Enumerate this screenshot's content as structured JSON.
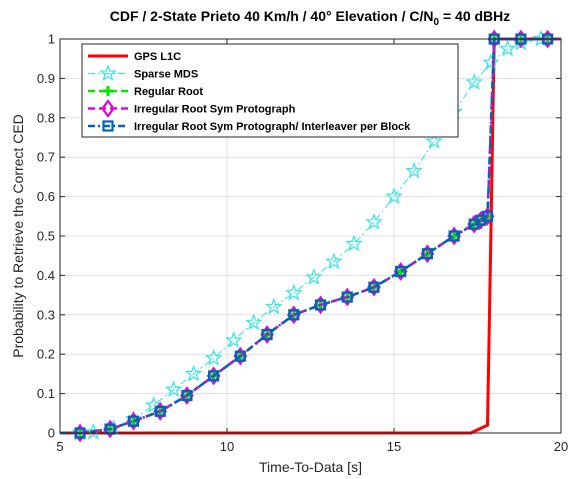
{
  "chart_data": {
    "type": "line",
    "title_main": "CDF / 2-State Prieto 40 Km/h / 40° Elevation / C/N",
    "title_sub": "0",
    "title_end": " = 40 dBHz",
    "xlabel": "Time-To-Data [s]",
    "ylabel": "Probability to Retrieve the Correct CED",
    "xlim": [
      5,
      20
    ],
    "ylim": [
      0,
      1
    ],
    "xticks": [
      "5",
      "10",
      "15",
      "20"
    ],
    "yticks": [
      "0",
      "0.1",
      "0.2",
      "0.3",
      "0.4",
      "0.5",
      "0.6",
      "0.7",
      "0.8",
      "0.9",
      "1"
    ],
    "grid": true,
    "legend_position": "top-left",
    "series": [
      {
        "name": "GPS L1C",
        "color": "#ff0000",
        "marker": "none",
        "dash": "solid",
        "x": [
          5,
          17.3,
          17.8,
          17.9,
          18.0,
          20
        ],
        "y": [
          0,
          0,
          0.02,
          0.5,
          1.0,
          1.0
        ]
      },
      {
        "name": "Sparse MDS",
        "color": "#33e6e6",
        "marker": "pentagram",
        "dash": "dashdot",
        "x": [
          5,
          5.6,
          6.0,
          6.6,
          7.2,
          7.8,
          8.4,
          9.0,
          9.6,
          10.2,
          10.8,
          11.4,
          12.0,
          12.6,
          13.2,
          13.8,
          14.4,
          15.0,
          15.6,
          16.2,
          16.8,
          17.4,
          17.9,
          18.4,
          18.8,
          19.4,
          20
        ],
        "y": [
          0,
          0,
          0.002,
          0.012,
          0.035,
          0.07,
          0.11,
          0.15,
          0.19,
          0.235,
          0.28,
          0.32,
          0.355,
          0.395,
          0.435,
          0.48,
          0.535,
          0.6,
          0.665,
          0.74,
          0.815,
          0.89,
          0.94,
          0.975,
          0.99,
          1.0,
          1.0
        ]
      },
      {
        "name": "Regular Root",
        "color": "#00e600",
        "marker": "plus",
        "dash": "dashed",
        "x": [
          5,
          5.6,
          6.5,
          7.2,
          8.0,
          8.8,
          9.6,
          10.4,
          11.2,
          12.0,
          12.8,
          13.6,
          14.4,
          15.2,
          16.0,
          16.8,
          17.4,
          17.6,
          17.8,
          18.0,
          18.8,
          19.6,
          20
        ],
        "y": [
          0,
          0,
          0.01,
          0.03,
          0.055,
          0.095,
          0.145,
          0.195,
          0.25,
          0.3,
          0.325,
          0.345,
          0.37,
          0.41,
          0.455,
          0.5,
          0.53,
          0.54,
          0.55,
          1.0,
          1.0,
          1.0,
          1.0
        ]
      },
      {
        "name": "Irregular Root Sym Protograph",
        "color": "#e600e6",
        "marker": "diamond",
        "dash": "dashed",
        "x": [
          5,
          5.6,
          6.5,
          7.2,
          8.0,
          8.8,
          9.6,
          10.4,
          11.2,
          12.0,
          12.8,
          13.6,
          14.4,
          15.2,
          16.0,
          16.8,
          17.4,
          17.6,
          17.8,
          18.0,
          18.8,
          19.6,
          20
        ],
        "y": [
          0,
          0,
          0.01,
          0.03,
          0.055,
          0.095,
          0.145,
          0.195,
          0.25,
          0.3,
          0.325,
          0.345,
          0.37,
          0.41,
          0.455,
          0.5,
          0.53,
          0.54,
          0.55,
          1.0,
          1.0,
          1.0,
          1.0
        ]
      },
      {
        "name": "Irregular Root Sym Protograph/ Interleaver per Block",
        "color": "#0066b3",
        "marker": "square",
        "dash": "dashdot",
        "x": [
          5,
          5.6,
          6.5,
          7.2,
          8.0,
          8.8,
          9.6,
          10.4,
          11.2,
          12.0,
          12.8,
          13.6,
          14.4,
          15.2,
          16.0,
          16.8,
          17.4,
          17.6,
          17.8,
          18.0,
          18.8,
          19.6,
          20
        ],
        "y": [
          0,
          0,
          0.01,
          0.03,
          0.055,
          0.095,
          0.145,
          0.195,
          0.25,
          0.3,
          0.325,
          0.345,
          0.37,
          0.41,
          0.455,
          0.5,
          0.53,
          0.54,
          0.55,
          1.0,
          1.0,
          1.0,
          1.0
        ]
      }
    ]
  }
}
